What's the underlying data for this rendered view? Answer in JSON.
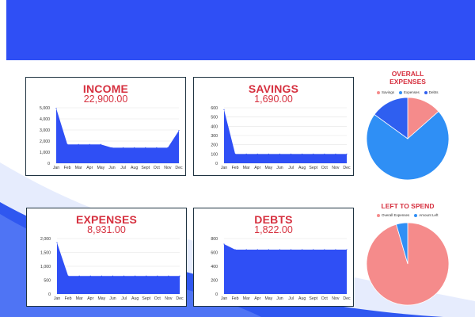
{
  "months": [
    "Jan",
    "Feb",
    "Mar",
    "Apr",
    "May",
    "Jun",
    "Jul",
    "Aug",
    "Sept",
    "Oct",
    "Nov",
    "Dec"
  ],
  "colors": {
    "banner": "#2f4ff5",
    "area": "#2f4ff5",
    "title_red": "#d6303f",
    "pie_pink": "#f58b8b",
    "pie_light_blue": "#2f8ff5",
    "pie_blue": "#2f5ff0"
  },
  "cards": {
    "income": {
      "title": "INCOME",
      "value": "22,900.00"
    },
    "savings": {
      "title": "SAVINGS",
      "value": "1,690.00"
    },
    "expenses": {
      "title": "EXPENSES",
      "value": "8,931.00"
    },
    "debts": {
      "title": "DEBTS",
      "value": "1,822.00"
    }
  },
  "chart_data": [
    {
      "type": "area",
      "title": "INCOME",
      "categories": [
        "Jan",
        "Feb",
        "Mar",
        "Apr",
        "May",
        "Jun",
        "Jul",
        "Aug",
        "Sept",
        "Oct",
        "Nov",
        "Dec"
      ],
      "values": [
        4950,
        1700,
        1700,
        1700,
        1700,
        1400,
        1400,
        1400,
        1400,
        1400,
        1400,
        2950
      ],
      "ylim": [
        0,
        5000
      ],
      "yticks": [
        "0",
        "1,000",
        "2,000",
        "3,000",
        "4,000",
        "5,000"
      ],
      "ytick_values": [
        0,
        1000,
        2000,
        3000,
        4000,
        5000
      ]
    },
    {
      "type": "area",
      "title": "SAVINGS",
      "categories": [
        "Jan",
        "Feb",
        "Mar",
        "Apr",
        "May",
        "Jun",
        "Jul",
        "Aug",
        "Sept",
        "Oct",
        "Nov",
        "Dec"
      ],
      "values": [
        580,
        100,
        100,
        100,
        100,
        100,
        100,
        100,
        100,
        100,
        100,
        100
      ],
      "ylim": [
        0,
        600
      ],
      "yticks": [
        "0",
        "100",
        "200",
        "300",
        "400",
        "500",
        "600"
      ],
      "ytick_values": [
        0,
        100,
        200,
        300,
        400,
        500,
        600
      ]
    },
    {
      "type": "area",
      "title": "EXPENSES",
      "categories": [
        "Jan",
        "Feb",
        "Mar",
        "Apr",
        "May",
        "Jun",
        "Jul",
        "Aug",
        "Sept",
        "Oct",
        "Nov",
        "Dec"
      ],
      "values": [
        1850,
        650,
        650,
        650,
        650,
        650,
        650,
        650,
        650,
        650,
        650,
        650
      ],
      "ylim": [
        0,
        2000
      ],
      "yticks": [
        "0",
        "500",
        "1,000",
        "1,500",
        "2,000"
      ],
      "ytick_values": [
        0,
        500,
        1000,
        1500,
        2000
      ]
    },
    {
      "type": "area",
      "title": "DEBTS",
      "categories": [
        "Jan",
        "Feb",
        "Mar",
        "Apr",
        "May",
        "Jun",
        "Jul",
        "Aug",
        "Sept",
        "Oct",
        "Nov",
        "Dec"
      ],
      "values": [
        720,
        640,
        640,
        640,
        640,
        640,
        640,
        640,
        640,
        640,
        640,
        640
      ],
      "ylim": [
        0,
        800
      ],
      "yticks": [
        "0",
        "200",
        "400",
        "600",
        "800"
      ],
      "ytick_values": [
        0,
        200,
        400,
        600,
        800
      ]
    },
    {
      "type": "pie",
      "title": "OVERALL EXPENSES",
      "labels": [
        "Savings",
        "Expenses",
        "Debts"
      ],
      "values": [
        13.5,
        71.5,
        15.0
      ],
      "colors": [
        "#f58b8b",
        "#2f8ff5",
        "#2f5ff0"
      ]
    },
    {
      "type": "pie",
      "title": "LEFT TO SPEND",
      "labels": [
        "Overall Expenses",
        "Amount Left"
      ],
      "values": [
        95.5,
        4.5
      ],
      "colors": [
        "#f58b8b",
        "#2f8ff5"
      ]
    }
  ],
  "pies": {
    "overall": {
      "title_line1": "OVERALL",
      "title_line2": "EXPENSES",
      "legend": [
        "Savings",
        "Expenses",
        "Debts"
      ]
    },
    "left": {
      "title": "LEFT TO SPEND",
      "legend": [
        "Overall Expenses",
        "Amount Left"
      ]
    }
  }
}
